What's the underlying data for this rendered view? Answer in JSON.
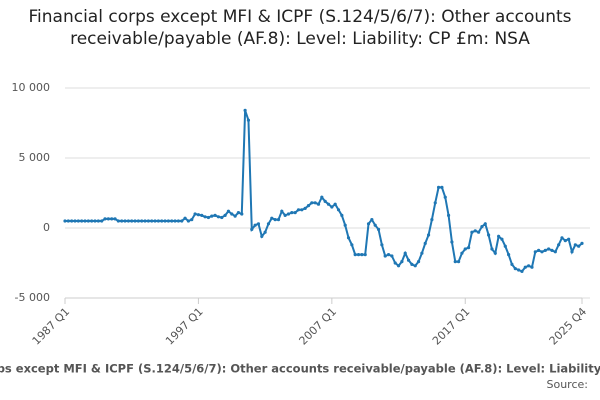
{
  "chart_data": {
    "type": "line",
    "title": "Financial corps except MFI & ICPF (S.124/5/6/7): Other accounts receivable/payable (AF.8): Level: Liability: CP £m: NSA",
    "source": "Source:",
    "categories": [
      "1987 Q1",
      null,
      null,
      null,
      null,
      null,
      null,
      null,
      null,
      null,
      null,
      null,
      null,
      null,
      null,
      null,
      null,
      null,
      null,
      null,
      null,
      null,
      null,
      null,
      null,
      null,
      null,
      null,
      null,
      null,
      null,
      null,
      null,
      null,
      null,
      null,
      null,
      null,
      null,
      null,
      "1997 Q1",
      null,
      null,
      null,
      null,
      null,
      null,
      null,
      null,
      null,
      null,
      null,
      null,
      null,
      null,
      null,
      null,
      null,
      null,
      null,
      null,
      null,
      null,
      null,
      null,
      null,
      null,
      null,
      null,
      null,
      null,
      null,
      null,
      null,
      null,
      null,
      null,
      null,
      null,
      null,
      "2007 Q1",
      null,
      null,
      null,
      null,
      null,
      null,
      null,
      null,
      null,
      null,
      null,
      null,
      null,
      null,
      null,
      null,
      null,
      null,
      null,
      null,
      null,
      null,
      null,
      null,
      null,
      null,
      null,
      null,
      null,
      null,
      null,
      null,
      null,
      null,
      null,
      null,
      null,
      null,
      null,
      "2017 Q1",
      null,
      null,
      null,
      null,
      null,
      null,
      null,
      null,
      null,
      null,
      null,
      null,
      null,
      null,
      null,
      null,
      null,
      null,
      null,
      null,
      null,
      null,
      null,
      null,
      null,
      null,
      null,
      null,
      null,
      null,
      null,
      null,
      null,
      null,
      "2025 Q4"
    ],
    "series": [
      {
        "name": "Financial corps except MFI & ICPF (S.124/5/6/7): Other accounts receivable/payable (AF.8): Level: Liability: CP £m: NSA",
        "color": "#1f77b4",
        "values": [
          500,
          500,
          500,
          500,
          500,
          500,
          500,
          500,
          500,
          500,
          500,
          500,
          650,
          650,
          650,
          650,
          500,
          500,
          500,
          500,
          500,
          500,
          500,
          500,
          500,
          500,
          500,
          500,
          500,
          500,
          500,
          500,
          500,
          500,
          500,
          500,
          700,
          500,
          600,
          1000,
          950,
          900,
          800,
          750,
          850,
          900,
          800,
          750,
          900,
          1200,
          1000,
          850,
          1100,
          1000,
          8400,
          7700,
          -100,
          200,
          300,
          -600,
          -300,
          300,
          700,
          600,
          600,
          1200,
          900,
          1000,
          1100,
          1100,
          1300,
          1300,
          1400,
          1600,
          1800,
          1800,
          1700,
          2200,
          1900,
          1700,
          1500,
          1700,
          1300,
          900,
          200,
          -700,
          -1200,
          -1900,
          -1900,
          -1900,
          -1900,
          300,
          600,
          200,
          -100,
          -1200,
          -2000,
          -1900,
          -2000,
          -2500,
          -2700,
          -2400,
          -1800,
          -2300,
          -2600,
          -2700,
          -2400,
          -1800,
          -1100,
          -500,
          600,
          1800,
          2900,
          2900,
          2200,
          900,
          -1000,
          -2400,
          -2400,
          -1800,
          -1500,
          -1400,
          -300,
          -200,
          -300,
          100,
          300,
          -500,
          -1500,
          -1800,
          -600,
          -800,
          -1300,
          -1900,
          -2600,
          -2900,
          -3000,
          -3100,
          -2800,
          -2700,
          -2800,
          -1700,
          -1600,
          -1700,
          -1600,
          -1500,
          -1600,
          -1700,
          -1200,
          -700,
          -900,
          -800,
          -1700,
          -1200,
          -1300,
          -1100
        ]
      }
    ],
    "ylim": [
      -5000,
      10000
    ],
    "yticks": [
      {
        "value": -5000,
        "label": "-5 000"
      },
      0,
      {
        "value": 5000,
        "label": "5 000"
      },
      {
        "value": 10000,
        "label": "10 000"
      }
    ],
    "grid": true
  }
}
